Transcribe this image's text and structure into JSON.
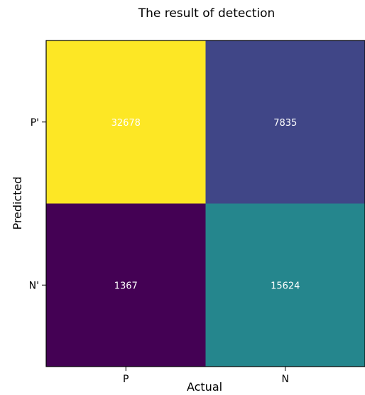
{
  "chart_data": {
    "type": "heatmap",
    "title": "The result of detection",
    "xlabel": "Actual",
    "ylabel": "Predicted",
    "x_categories": [
      "P",
      "N"
    ],
    "y_categories": [
      "P'",
      "N'"
    ],
    "values": [
      [
        32678,
        7835
      ],
      [
        1367,
        15624
      ]
    ],
    "colormap": "viridis",
    "cell_text_color": "#ffffff",
    "grid": false,
    "legend": "none"
  }
}
